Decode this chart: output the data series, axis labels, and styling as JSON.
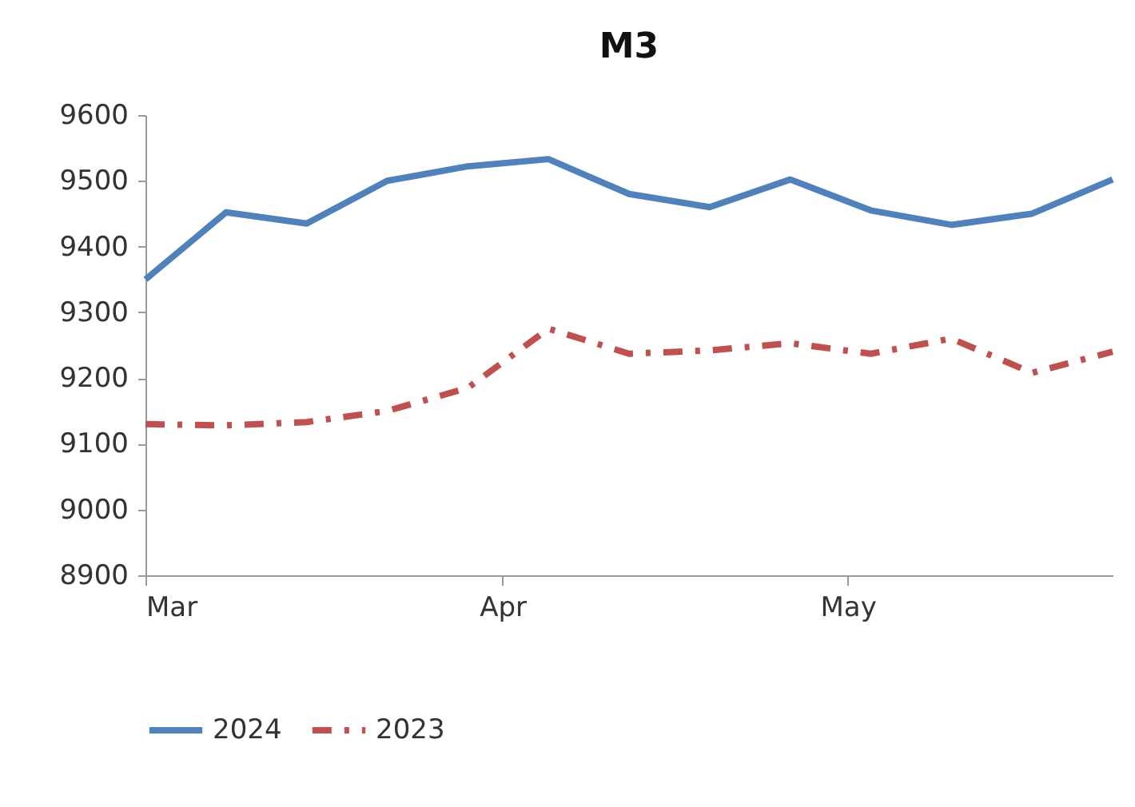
{
  "chart_data": {
    "type": "line",
    "title": "M3",
    "x": [
      "--03-01",
      "--03-08",
      "--03-15",
      "--03-22",
      "--03-29",
      "--04-05",
      "--04-12",
      "--04-19",
      "--04-26",
      "--05-03",
      "--05-10",
      "--05-17",
      "--05-24"
    ],
    "series": [
      {
        "name": "2024",
        "color": "#4f81bd",
        "line_style": "solid",
        "values": [
          9350,
          9452,
          9435,
          9500,
          9522,
          9533,
          9480,
          9460,
          9502,
          9455,
          9433,
          9450,
          9502
        ]
      },
      {
        "name": "2023",
        "color": "#c0504d",
        "line_style": "dashed",
        "values": [
          9130,
          9128,
          9133,
          9150,
          9185,
          9275,
          9237,
          9242,
          9253,
          9237,
          9260,
          9208,
          9240
        ]
      }
    ],
    "xlim": [
      "--03-01",
      "--05-24"
    ],
    "xticks": [
      {
        "value": "--03-01",
        "label": "Mar"
      },
      {
        "value": "--04-01",
        "label": "Apr"
      },
      {
        "value": "--05-01",
        "label": "May"
      }
    ],
    "ylim": [
      8900,
      9600
    ],
    "yticks": [
      8900,
      9000,
      9100,
      9200,
      9300,
      9400,
      9500,
      9600
    ],
    "grid": false,
    "legend": "bottom",
    "marker": "none"
  }
}
